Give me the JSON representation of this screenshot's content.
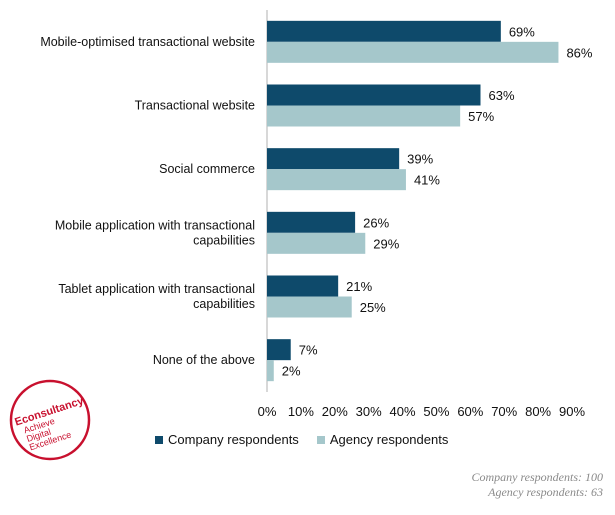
{
  "chart_data": {
    "type": "bar",
    "orientation": "horizontal",
    "categories": [
      [
        "Mobile-optimised transactional website"
      ],
      [
        "Transactional website"
      ],
      [
        "Social commerce"
      ],
      [
        "Mobile application with transactional",
        "capabilities"
      ],
      [
        "Tablet application with transactional",
        "capabilities"
      ],
      [
        "None of the above"
      ]
    ],
    "series": [
      {
        "name": "Company respondents",
        "color": "#0e4a6b",
        "values": [
          69,
          63,
          39,
          26,
          21,
          7
        ]
      },
      {
        "name": "Agency respondents",
        "color": "#a5c7cb",
        "values": [
          86,
          57,
          41,
          29,
          25,
          2
        ]
      }
    ],
    "value_suffix": "%",
    "xlim": [
      0,
      90
    ],
    "xticks": [
      "0%",
      "10%",
      "20%",
      "30%",
      "40%",
      "50%",
      "60%",
      "70%",
      "80%",
      "90%"
    ],
    "grid": false,
    "legend_position": "bottom"
  },
  "footnotes": [
    "Company respondents: 100",
    "Agency respondents: 63"
  ],
  "logo": {
    "lines": [
      "Econsultancy",
      "Achieve",
      "Digital",
      "Excellence"
    ],
    "color": "#c8102e"
  }
}
